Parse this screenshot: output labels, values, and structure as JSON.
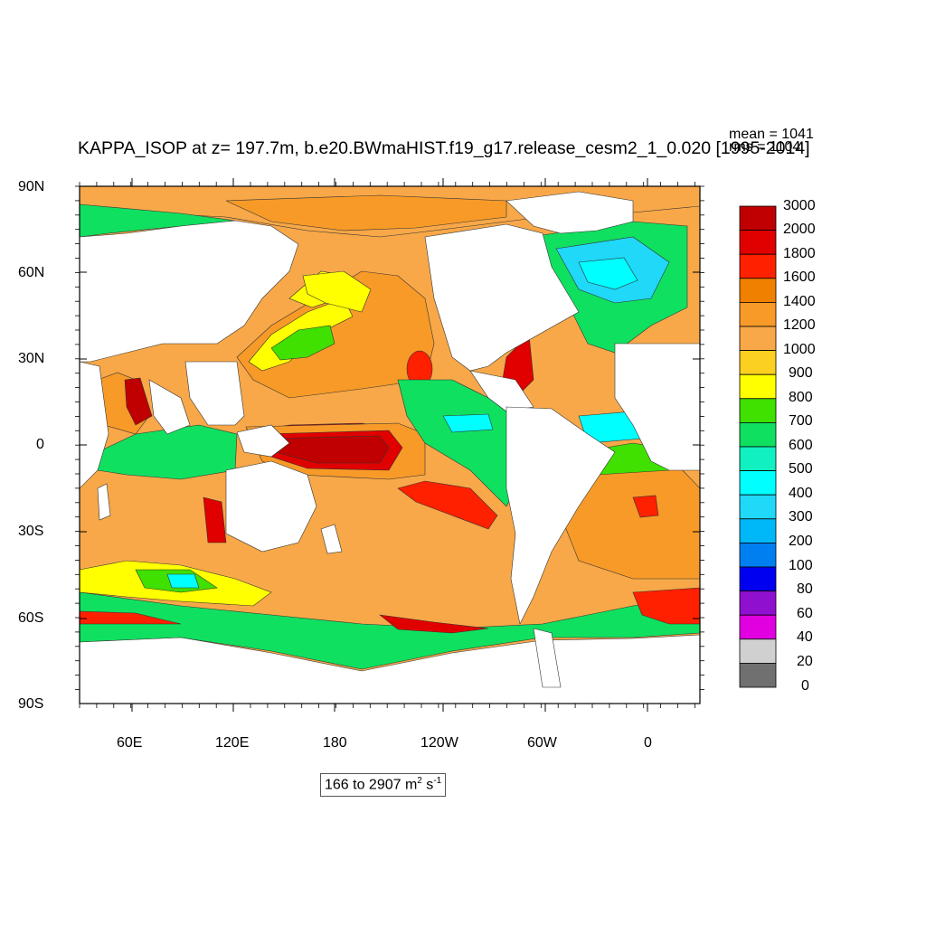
{
  "header": {
    "title": "KAPPA_ISOP at z= 197.7m, b.e20.BWmaHIST.f19_g17.release_cesm2_1_0.020 [1995-2014]",
    "mean_label": "mean = 1041",
    "rms_label": "rms = 1104"
  },
  "axes": {
    "y_ticks": [
      "90N",
      "60N",
      "30N",
      "0",
      "30S",
      "60S",
      "90S"
    ],
    "x_ticks": [
      "60E",
      "120E",
      "180",
      "120W",
      "60W",
      "0"
    ]
  },
  "range_box": {
    "text": "166 to 2907 m",
    "sup1": "2",
    "mid": " s",
    "sup2": "-1"
  },
  "colorbar": {
    "levels": [
      "3000",
      "2000",
      "1800",
      "1600",
      "1400",
      "1200",
      "1000",
      "900",
      "800",
      "700",
      "600",
      "500",
      "400",
      "300",
      "200",
      "100",
      "80",
      "60",
      "40",
      "20",
      "0"
    ],
    "colors": [
      "#c00000",
      "#e00000",
      "#ff2000",
      "#f08000",
      "#f89a28",
      "#f8a848",
      "#fcd020",
      "#ffff00",
      "#40e000",
      "#10e060",
      "#10f0c0",
      "#00ffff",
      "#20d8f8",
      "#00b8f8",
      "#0080f0",
      "#0000f0",
      "#9010d0",
      "#e000e0",
      "#d0d0d0",
      "#707070"
    ]
  },
  "map_colors": {
    "land": "#ffffff",
    "c600": "#10e060",
    "c700": "#40e000",
    "c800": "#ffff00",
    "c900": "#fcd020",
    "c1000": "#f8a848",
    "c1200": "#f89a28",
    "c1400": "#f08000",
    "c1600": "#ff2000",
    "c2000": "#e00000",
    "c3000": "#c00000",
    "c500": "#00ffff",
    "c400": "#20d8f8"
  }
}
